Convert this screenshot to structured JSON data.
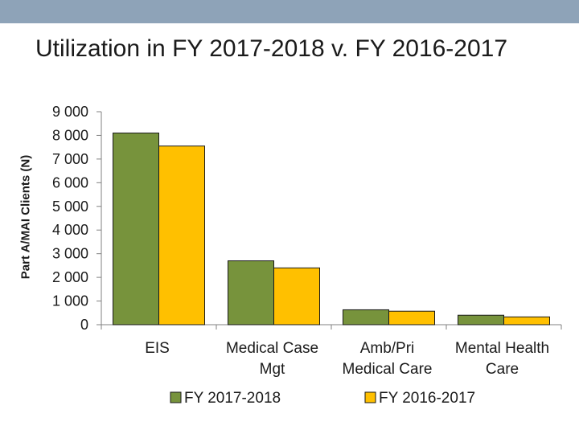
{
  "title": "Utilization in FY 2017-2018 v. FY 2016-2017",
  "colors": {
    "series_1": "#77933c",
    "series_2": "#ffc000",
    "header_bar": "#8ea3b8"
  },
  "chart_data": {
    "type": "bar",
    "title": "Utilization in FY 2017-2018 v. FY 2016-2017",
    "xlabel": "",
    "ylabel": "Part A/MAI Clients (N)",
    "ylim": [
      0,
      9000
    ],
    "yticks": [
      0,
      1000,
      2000,
      3000,
      4000,
      5000,
      6000,
      7000,
      8000,
      9000
    ],
    "ytick_labels": [
      "0",
      "1 000",
      "2 000",
      "3 000",
      "4 000",
      "5 000",
      "6 000",
      "7 000",
      "8 000",
      "9 000"
    ],
    "categories": [
      [
        "EIS"
      ],
      [
        "Medical Case",
        "Mgt"
      ],
      [
        "Amb/Pri",
        "Medical Care"
      ],
      [
        "Mental Health",
        "Care"
      ]
    ],
    "series": [
      {
        "name": "FY 2017-2018",
        "values": [
          8100,
          2700,
          630,
          400
        ]
      },
      {
        "name": "FY 2016-2017",
        "values": [
          7550,
          2400,
          570,
          330
        ]
      }
    ],
    "legend_position": "bottom"
  }
}
